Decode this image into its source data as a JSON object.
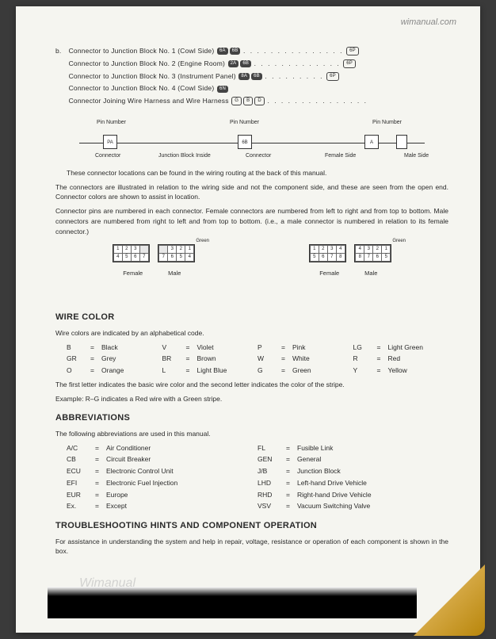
{
  "watermark_top": "wimanual.com",
  "watermark_bottom": "Wimanual",
  "connector_list": {
    "prefix": "b.",
    "items": [
      "Connector to Junction Block No. 1 (Cowl Side)",
      "Connector to Junction Block No. 2 (Engine Room)",
      "Connector to Junction Block No. 3 (Instrument Panel)",
      "Connector to Junction Block No. 4 (Cowl Side)",
      "Connector Joining Wire Harness and Wire Harness"
    ]
  },
  "diagram1": {
    "pin_number": "Pin Number",
    "connector": "Connector",
    "junction_block": "Junction Block Inside",
    "female_side": "Female Side",
    "male_side": "Male Side"
  },
  "paragraphs": {
    "p1": "These connector locations can be found in the wiring routing at the back of this manual.",
    "p2": "The connectors are illustrated in relation to the wiring side and not the component side, and these are seen from the open end.   Connector colors are shown to assist in location.",
    "p3": "Connector pins are numbered in each connector.  Female connectors are numbered from left to right and from top to bottom.  Male connectors are numbered from right to left and from top to bottom.   (i.e., a male connector is numbered in relation to its female connector.)"
  },
  "green_label": "Green",
  "conn_labels": {
    "female": "Female",
    "male": "Male"
  },
  "wire_color": {
    "heading": "WIRE COLOR",
    "intro": "Wire colors are indicated by an alphabetical code.",
    "codes": [
      {
        "k": "B",
        "v": "Black"
      },
      {
        "k": "V",
        "v": "Violet"
      },
      {
        "k": "P",
        "v": "Pink"
      },
      {
        "k": "LG",
        "v": "Light Green"
      },
      {
        "k": "GR",
        "v": "Grey"
      },
      {
        "k": "BR",
        "v": "Brown"
      },
      {
        "k": "W",
        "v": "White"
      },
      {
        "k": "R",
        "v": "Red"
      },
      {
        "k": "O",
        "v": "Orange"
      },
      {
        "k": "L",
        "v": "Light Blue"
      },
      {
        "k": "G",
        "v": "Green"
      },
      {
        "k": "Y",
        "v": "Yellow"
      }
    ],
    "note1": "The first letter indicates the basic wire color and the second letter indicates the color of the stripe.",
    "note2": "Example: R–G indicates a Red wire with a Green stripe."
  },
  "abbreviations": {
    "heading": "ABBREVIATIONS",
    "intro": "The following abbreviations are used in this manual.",
    "items": [
      {
        "k": "A/C",
        "v": "Air Conditioner"
      },
      {
        "k": "FL",
        "v": "Fusible Link"
      },
      {
        "k": "CB",
        "v": "Circuit Breaker"
      },
      {
        "k": "GEN",
        "v": "General"
      },
      {
        "k": "ECU",
        "v": "Electronic Control Unit"
      },
      {
        "k": "J/B",
        "v": "Junction Block"
      },
      {
        "k": "EFI",
        "v": "Electronic Fuel Injection"
      },
      {
        "k": "LHD",
        "v": "Left-hand Drive Vehicle"
      },
      {
        "k": "EUR",
        "v": "Europe"
      },
      {
        "k": "RHD",
        "v": "Right-hand Drive Vehicle"
      },
      {
        "k": "Ex.",
        "v": "Except"
      },
      {
        "k": "VSV",
        "v": "Vacuum Switching Valve"
      }
    ]
  },
  "troubleshooting": {
    "heading": "TROUBLESHOOTING HINTS AND COMPONENT OPERATION",
    "intro": "For assistance in understanding the system and help in repair, voltage, resistance or operation of each component is shown in the box."
  },
  "colors": {
    "page_bg": "#f5f5f0",
    "text": "#2a2a2a",
    "body_bg": "#3a3a3a",
    "curl_light": "#f4e4a6",
    "curl_dark": "#b8860b"
  }
}
